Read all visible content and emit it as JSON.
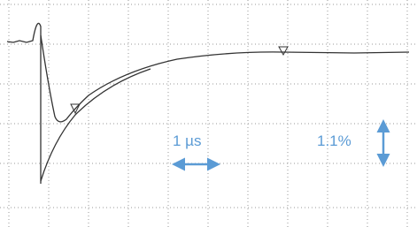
{
  "annotations": {
    "time_scale": "1 µs",
    "amplitude_scale": "1.1%"
  }
}
